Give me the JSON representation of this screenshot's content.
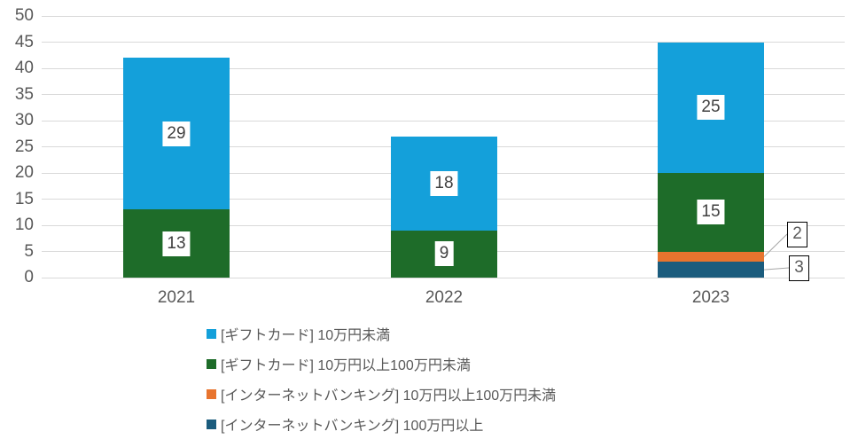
{
  "chart_data": {
    "type": "bar",
    "stacked": true,
    "title": "",
    "categories": [
      "2021",
      "2022",
      "2023"
    ],
    "series": [
      {
        "name": "[ギフトカード] 10万円未満",
        "color": "#14A0DA",
        "values": [
          29,
          18,
          25
        ]
      },
      {
        "name": "[ギフトカード] 10万円以上100万円未満",
        "color": "#1E6C29",
        "values": [
          13,
          9,
          15
        ]
      },
      {
        "name": "[インターネットバンキング] 10万円以上100万円未満",
        "color": "#E8742E",
        "values": [
          0,
          0,
          2
        ]
      },
      {
        "name": "[インターネットバンキング] 100万円以上",
        "color": "#1B5C7D",
        "values": [
          0,
          0,
          3
        ]
      }
    ],
    "stack_order_note": "series listed top-to-bottom of stack; legend order matches",
    "y_axis": {
      "min": 0,
      "max": 50,
      "step": 5
    },
    "grid": true,
    "legend_position": "bottom",
    "data_labels": true,
    "annotations": {
      "callout_boxes": [
        {
          "value": 3,
          "series": "[インターネットバンキング] 100万円以上"
        },
        {
          "value": 2,
          "series": "[インターネットバンキング] 10万円以上100万円未満"
        }
      ]
    }
  },
  "ui": {
    "colors": {
      "background": "#FFFFFF",
      "gridline": "#D9D9D9",
      "axis_text": "#595959",
      "data_label_text": "#404040",
      "legend_text": "#595959",
      "leader_line": "#A6A6A6",
      "callout_border": "#000000",
      "callout_text": "#595959"
    }
  }
}
